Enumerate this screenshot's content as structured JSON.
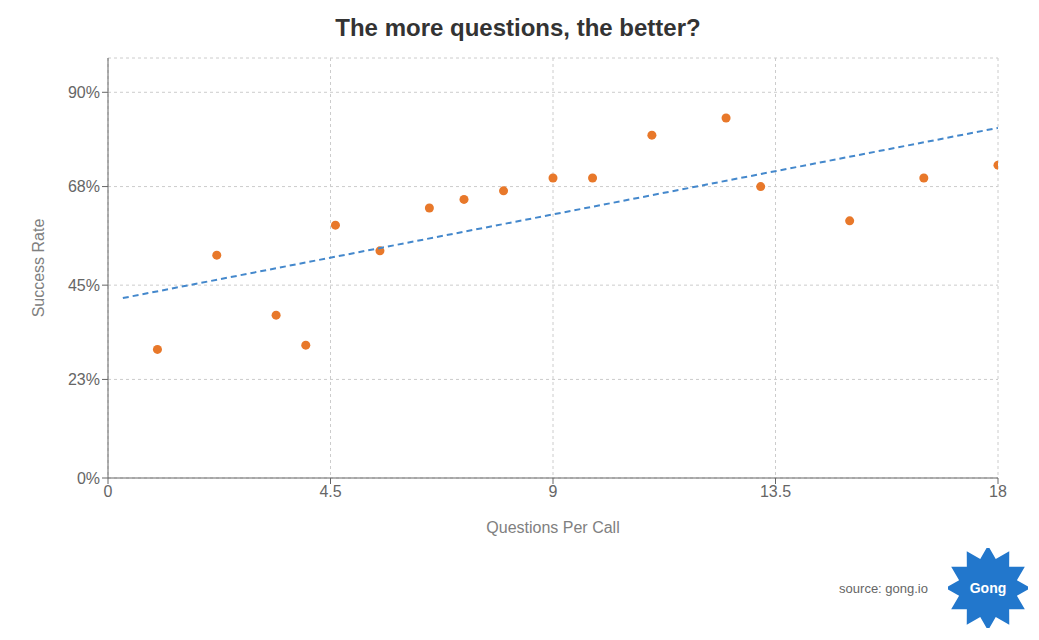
{
  "chart_data": {
    "type": "scatter",
    "title": "The more questions, the better?",
    "xlabel": "Questions Per Call",
    "ylabel": "Success Rate",
    "series": [
      {
        "type": "scatter",
        "marker": "circle",
        "color": "#e8782a",
        "x": [
          1.0,
          2.2,
          3.4,
          4.0,
          4.6,
          5.5,
          6.5,
          7.2,
          8.0,
          9.0,
          9.8,
          11.0,
          12.5,
          13.2,
          15.0,
          16.5,
          18.0
        ],
        "values": [
          0.3,
          0.52,
          0.38,
          0.31,
          0.59,
          0.53,
          0.63,
          0.65,
          0.67,
          0.7,
          0.7,
          0.8,
          0.84,
          0.68,
          0.6,
          0.7,
          0.73
        ]
      },
      {
        "type": "line",
        "line_style": "dashed",
        "color": "#4488cc",
        "x": [
          0.3,
          18.0
        ],
        "values": [
          0.4199,
          0.8169
        ]
      }
    ],
    "xlim": [
      0,
      18
    ],
    "xticks": [
      0,
      4.5,
      9,
      13.5,
      18
    ],
    "ylim": [
      0.0,
      0.98
    ],
    "yticks": [
      {
        "value": 0.0,
        "label": "0%"
      },
      {
        "value": 0.23,
        "label": "23%"
      },
      {
        "value": 0.45,
        "label": "45%"
      },
      {
        "value": 0.68,
        "label": "68%"
      },
      {
        "value": 0.9,
        "label": "90%"
      }
    ],
    "grid": true,
    "annotations": [
      {
        "text": "source: gong.io"
      },
      {
        "text": "Gong",
        "color": "#2277cc"
      }
    ]
  }
}
